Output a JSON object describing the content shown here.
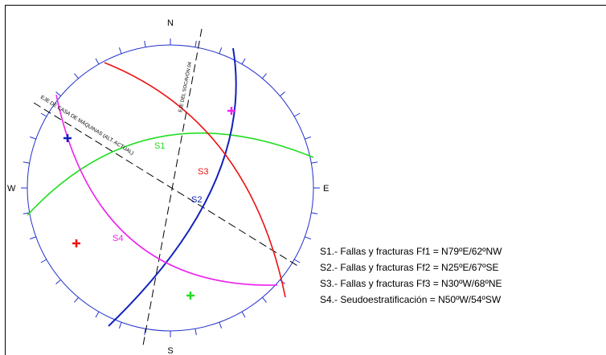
{
  "compass": {
    "north": "N",
    "south": "S",
    "east": "E",
    "west": "W"
  },
  "planes": [
    {
      "label": "S1"
    },
    {
      "label": "S2"
    },
    {
      "label": "S3"
    },
    {
      "label": "S4"
    }
  ],
  "axes": {
    "tunnel": "EJE DEL SOCAVÓN 04",
    "powerhouse": "EJE DE CASA DE MÁQUINAS (ALT. ACTUAL)"
  },
  "legend": [
    "S1.- Fallas y fracturas Ff1 = N79ºE/62ºNW",
    "S2.- Fallas y fracturas Ff2 = N25ºE/67ºSE",
    "S3.- Fallas y fracturas Ff3 = N30ºW/68ºNE",
    "S4.- Seudoestratificación = N50ºW/54ºSW"
  ]
}
